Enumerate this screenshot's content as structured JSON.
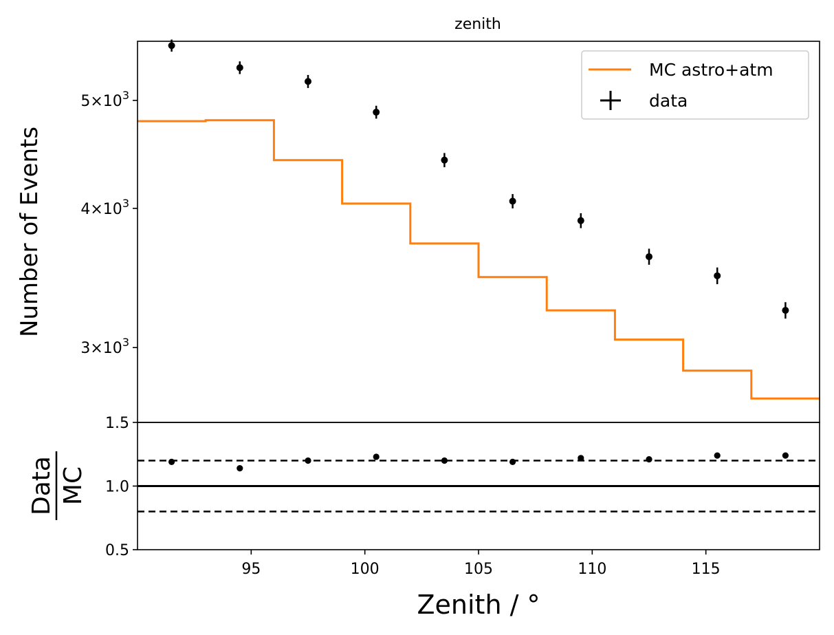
{
  "chart_data": [
    {
      "panel": "main",
      "type": "step+errorbar",
      "title": "zenith",
      "xlabel": "",
      "ylabel": "Number of Events",
      "yscale": "log",
      "xlim": [
        90,
        120
      ],
      "ylim": [
        2570,
        5650
      ],
      "yticks": [
        {
          "value": 3000,
          "mantissa": "3",
          "base": "10",
          "exp": "3"
        },
        {
          "value": 4000,
          "mantissa": "4",
          "base": "10",
          "exp": "3"
        },
        {
          "value": 5000,
          "mantissa": "5",
          "base": "10",
          "exp": "3"
        }
      ],
      "bin_edges": [
        90,
        93,
        96,
        99,
        102,
        105,
        108,
        111,
        114,
        117,
        120
      ],
      "series": [
        {
          "name": "MC astro+atm",
          "kind": "step",
          "color": "#ff7f0e",
          "values": [
            4790,
            4800,
            4420,
            4040,
            3720,
            3470,
            3240,
            3050,
            2860,
            2700
          ]
        },
        {
          "name": "data",
          "kind": "errorbar",
          "color": "#000000",
          "x": [
            91.5,
            94.5,
            97.5,
            100.5,
            103.5,
            106.5,
            109.5,
            112.5,
            115.5,
            118.5
          ],
          "values": [
            5600,
            5350,
            5200,
            4880,
            4420,
            4060,
            3900,
            3620,
            3480,
            3240
          ],
          "errors": [
            70,
            70,
            70,
            65,
            65,
            60,
            60,
            60,
            60,
            55
          ]
        }
      ],
      "legend": {
        "position": "top-right",
        "entries": [
          {
            "label": "MC astro+atm",
            "marker": "line",
            "color": "#ff7f0e"
          },
          {
            "label": "data",
            "marker": "cross",
            "color": "#000000"
          }
        ]
      }
    },
    {
      "panel": "ratio",
      "type": "scatter",
      "xlabel": "Zenith / °",
      "ylabel_numerator": "Data",
      "ylabel_denominator": "MC",
      "xlim": [
        90,
        120
      ],
      "ylim": [
        0.5,
        1.5
      ],
      "xticks": [
        "95",
        "100",
        "105",
        "110",
        "115"
      ],
      "xtick_values": [
        95,
        100,
        105,
        110,
        115
      ],
      "yticks": [
        "0.5",
        "1.0",
        "1.5"
      ],
      "ytick_values": [
        0.5,
        1.0,
        1.5
      ],
      "x": [
        91.5,
        94.5,
        97.5,
        100.5,
        103.5,
        106.5,
        109.5,
        112.5,
        115.5,
        118.5
      ],
      "values": [
        1.19,
        1.14,
        1.2,
        1.23,
        1.2,
        1.19,
        1.22,
        1.21,
        1.24,
        1.24
      ],
      "reference_lines": [
        {
          "y": 1.0,
          "style": "solid"
        },
        {
          "y": 1.2,
          "style": "dashed"
        },
        {
          "y": 0.8,
          "style": "dashed"
        }
      ]
    }
  ]
}
